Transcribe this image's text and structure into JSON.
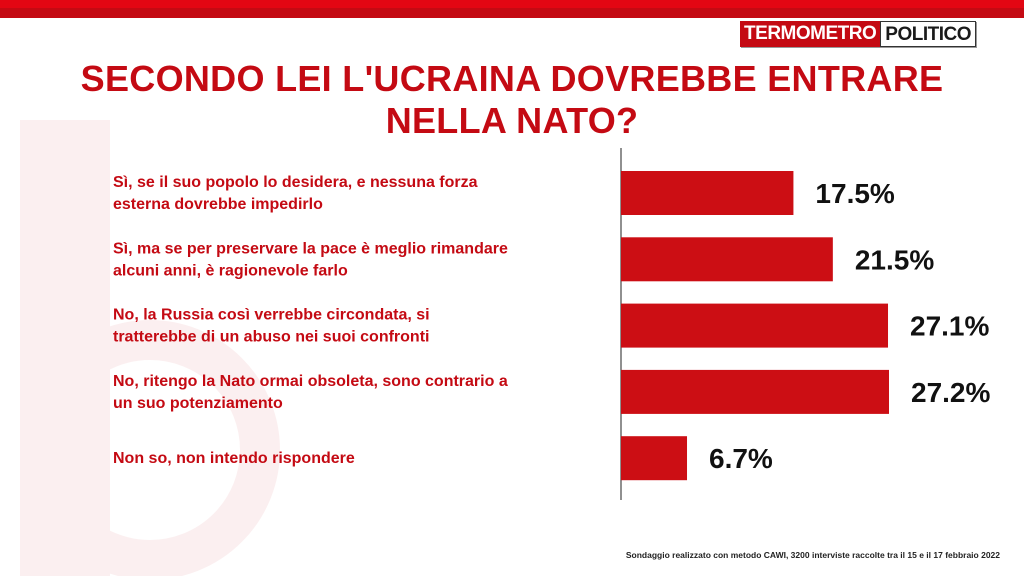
{
  "logo": {
    "part1": "TERMOMETRO",
    "part2": "POLITICO"
  },
  "title": "SECONDO LEI L'UCRAINA DOVREBBE ENTRARE NELLA NATO?",
  "footnote": "Sondaggio realizzato con metodo CAWI, 3200 interviste raccolte tra il 15 e il 17 febbraio 2022",
  "colors": {
    "accent": "#c40a13",
    "bar": "#cc0e14",
    "text": "#111111"
  },
  "chart_data": {
    "type": "bar",
    "orientation": "horizontal",
    "title": "SECONDO LEI L'UCRAINA DOVREBBE ENTRARE NELLA NATO?",
    "categories": [
      [
        "Sì, se il suo popolo lo desidera, e nessuna forza",
        "esterna dovrebbe impedirlo"
      ],
      [
        "Sì, ma se per preservare la pace è meglio rimandare",
        "alcuni anni, è ragionevole farlo"
      ],
      [
        "No, la Russia così verrebbe circondata, si",
        "tratterebbe di un abuso nei suoi confronti"
      ],
      [
        "No, ritengo la Nato ormai obsoleta, sono contrario a",
        "un suo potenziamento"
      ],
      [
        "Non so, non intendo rispondere"
      ]
    ],
    "values": [
      17.5,
      21.5,
      27.1,
      27.2,
      6.7
    ],
    "value_labels": [
      "17.5%",
      "21.5%",
      "27.1%",
      "27.2%",
      "6.7%"
    ],
    "unit": "%",
    "xlim": [
      0,
      27.2
    ],
    "grid": false
  }
}
